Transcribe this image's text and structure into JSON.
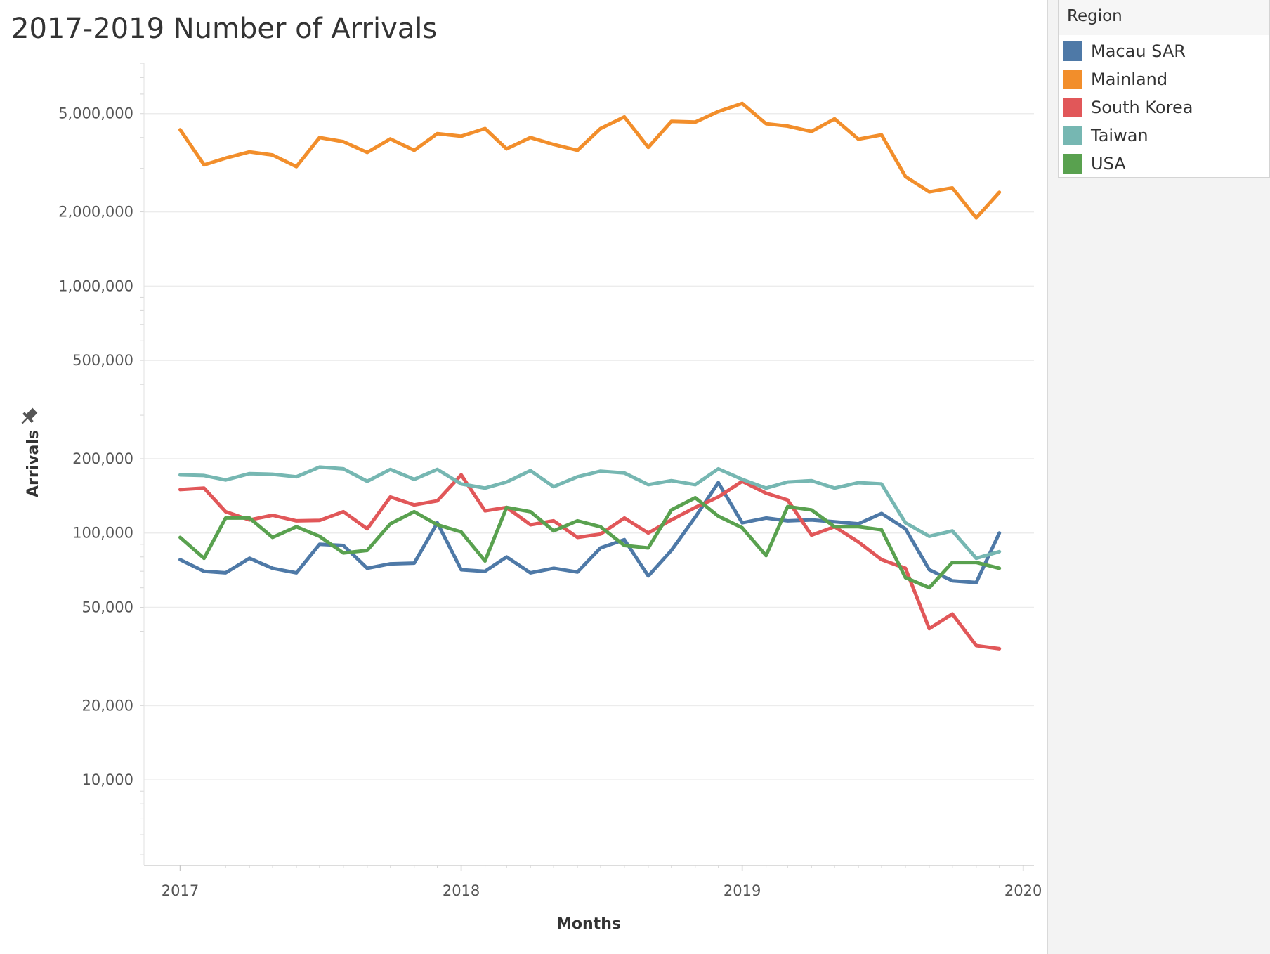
{
  "title": "2017-2019 Number of Arrivals",
  "legend": {
    "title": "Region",
    "items": [
      {
        "label": "Macau SAR",
        "color": "#4e79a7"
      },
      {
        "label": "Mainland",
        "color": "#f28e2b"
      },
      {
        "label": "South Korea",
        "color": "#e15759"
      },
      {
        "label": "Taiwan",
        "color": "#76b7b2"
      },
      {
        "label": "USA",
        "color": "#59a14f"
      }
    ]
  },
  "chart_data": {
    "type": "line",
    "title": "2017-2019 Number of Arrivals",
    "xlabel": "Months",
    "ylabel": "Arrivals",
    "yscale": "log",
    "ylim": [
      4500,
      8000000
    ],
    "xlim": [
      "2016-11-15",
      "2020-01-15"
    ],
    "x_ticks": [
      "2017",
      "2018",
      "2019",
      "2020"
    ],
    "y_ticks": [
      {
        "value": 10000,
        "label": "10,000"
      },
      {
        "value": 20000,
        "label": "20,000"
      },
      {
        "value": 50000,
        "label": "50,000"
      },
      {
        "value": 100000,
        "label": "100,000"
      },
      {
        "value": 200000,
        "label": "200,000"
      },
      {
        "value": 500000,
        "label": "500,000"
      },
      {
        "value": 1000000,
        "label": "1,000,000"
      },
      {
        "value": 2000000,
        "label": "2,000,000"
      },
      {
        "value": 5000000,
        "label": "5,000,000"
      }
    ],
    "grid": true,
    "legend_position": "top-right",
    "x": [
      "2017-01",
      "2017-02",
      "2017-03",
      "2017-04",
      "2017-05",
      "2017-06",
      "2017-07",
      "2017-08",
      "2017-09",
      "2017-10",
      "2017-11",
      "2017-12",
      "2018-01",
      "2018-02",
      "2018-03",
      "2018-04",
      "2018-05",
      "2018-06",
      "2018-07",
      "2018-08",
      "2018-09",
      "2018-10",
      "2018-11",
      "2018-12",
      "2019-01",
      "2019-02",
      "2019-03",
      "2019-04",
      "2019-05",
      "2019-06",
      "2019-07",
      "2019-08",
      "2019-09",
      "2019-10",
      "2019-11",
      "2019-12"
    ],
    "series": [
      {
        "name": "Macau SAR",
        "color": "#4e79a7",
        "values": [
          78000,
          70000,
          69000,
          79000,
          72000,
          69000,
          90000,
          89000,
          72000,
          75000,
          75500,
          110000,
          71000,
          70000,
          80000,
          69000,
          72000,
          69500,
          87000,
          94000,
          67000,
          85000,
          116000,
          160000,
          110000,
          115000,
          112000,
          113000,
          111000,
          109000,
          120000,
          104000,
          71000,
          64000,
          63000,
          100000
        ]
      },
      {
        "name": "Mainland",
        "color": "#f28e2b",
        "values": [
          4300000,
          3100000,
          3300000,
          3500000,
          3400000,
          3050000,
          4000000,
          3850000,
          3480000,
          3950000,
          3550000,
          4150000,
          4050000,
          4350000,
          3600000,
          4000000,
          3750000,
          3550000,
          4350000,
          4850000,
          3650000,
          4650000,
          4620000,
          5100000,
          5500000,
          4550000,
          4450000,
          4230000,
          4760000,
          3940000,
          4100000,
          2780000,
          2410000,
          2500000,
          1890000,
          2400000
        ]
      },
      {
        "name": "South Korea",
        "color": "#e15759",
        "values": [
          150000,
          152000,
          122000,
          113000,
          118000,
          112000,
          112500,
          122000,
          104000,
          140000,
          130000,
          135000,
          172000,
          123000,
          127000,
          108000,
          112000,
          96000,
          99000,
          115000,
          100000,
          113000,
          127000,
          140000,
          162000,
          145000,
          136000,
          98000,
          106000,
          92000,
          78000,
          72000,
          41000,
          47000,
          35000,
          34000
        ]
      },
      {
        "name": "Taiwan",
        "color": "#76b7b2",
        "values": [
          172000,
          171000,
          164000,
          174000,
          173000,
          169000,
          185000,
          182000,
          162000,
          181000,
          165000,
          181000,
          158000,
          152000,
          161000,
          179000,
          154000,
          169000,
          178000,
          175000,
          157000,
          163000,
          157000,
          182000,
          165000,
          152000,
          161000,
          163000,
          152000,
          160000,
          158000,
          110000,
          97000,
          102000,
          79000,
          84000
        ]
      },
      {
        "name": "USA",
        "color": "#59a14f",
        "values": [
          96000,
          79000,
          115000,
          115000,
          96000,
          106000,
          97000,
          83000,
          85000,
          109000,
          122000,
          108000,
          101000,
          77000,
          127000,
          122000,
          102000,
          112000,
          106000,
          89000,
          87000,
          124000,
          139000,
          117000,
          105000,
          81000,
          128000,
          124000,
          106000,
          106000,
          103000,
          66000,
          60000,
          76000,
          76000,
          72000
        ]
      }
    ]
  }
}
